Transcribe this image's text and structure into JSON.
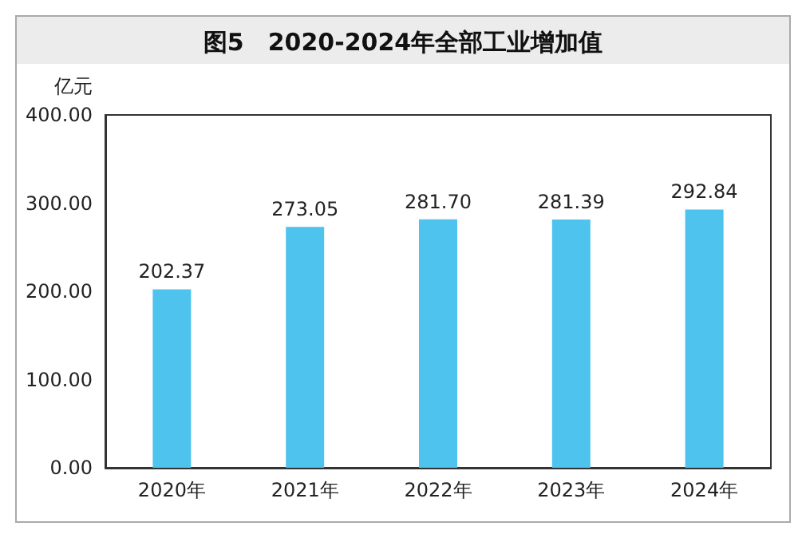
{
  "chart_data": {
    "type": "bar",
    "title": "图5　2020-2024年全部工业增加值",
    "ylabel": "亿元",
    "categories": [
      "2020年",
      "2021年",
      "2022年",
      "2023年",
      "2024年"
    ],
    "values": [
      202.37,
      273.05,
      281.7,
      281.39,
      292.84
    ],
    "color": "#4ec3ee",
    "ylim": [
      0,
      400
    ],
    "yticks": [
      {
        "value": 0,
        "label": "0.00"
      },
      {
        "value": 100,
        "label": "100.00"
      },
      {
        "value": 200,
        "label": "200.00"
      },
      {
        "value": 300,
        "label": "300.00"
      },
      {
        "value": 400,
        "label": "400.00"
      }
    ],
    "value_labels": [
      "202.37",
      "273.05",
      "281.70",
      "281.39",
      "292.84"
    ],
    "grid": false
  }
}
